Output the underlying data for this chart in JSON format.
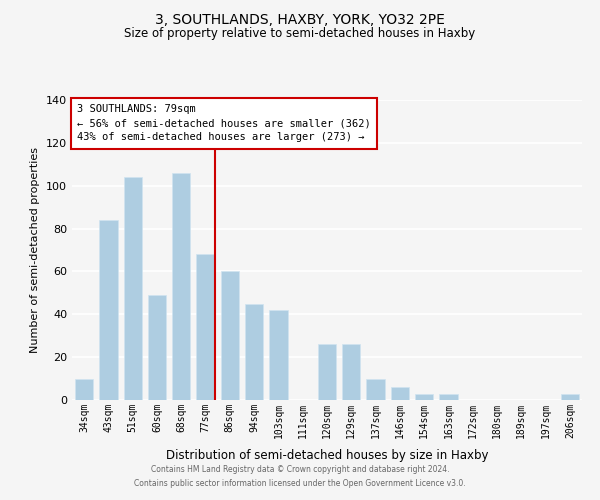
{
  "title": "3, SOUTHLANDS, HAXBY, YORK, YO32 2PE",
  "subtitle": "Size of property relative to semi-detached houses in Haxby",
  "xlabel": "Distribution of semi-detached houses by size in Haxby",
  "ylabel": "Number of semi-detached properties",
  "bar_labels": [
    "34sqm",
    "43sqm",
    "51sqm",
    "60sqm",
    "68sqm",
    "77sqm",
    "86sqm",
    "94sqm",
    "103sqm",
    "111sqm",
    "120sqm",
    "129sqm",
    "137sqm",
    "146sqm",
    "154sqm",
    "163sqm",
    "172sqm",
    "180sqm",
    "189sqm",
    "197sqm",
    "206sqm"
  ],
  "bar_values": [
    10,
    84,
    104,
    49,
    106,
    68,
    60,
    45,
    42,
    0,
    26,
    26,
    10,
    6,
    3,
    3,
    0,
    0,
    0,
    0,
    3
  ],
  "bar_color": "#aecde1",
  "bar_edge_color": "#d0e4f0",
  "background_color": "#f5f5f5",
  "grid_color": "#ffffff",
  "vline_x_index": 5,
  "vline_color": "#cc0000",
  "annotation_title": "3 SOUTHLANDS: 79sqm",
  "annotation_line1": "← 56% of semi-detached houses are smaller (362)",
  "annotation_line2": "43% of semi-detached houses are larger (273) →",
  "annotation_box_color": "#ffffff",
  "annotation_box_edge": "#cc0000",
  "ylim": [
    0,
    140
  ],
  "yticks": [
    0,
    20,
    40,
    60,
    80,
    100,
    120,
    140
  ],
  "footer_line1": "Contains HM Land Registry data © Crown copyright and database right 2024.",
  "footer_line2": "Contains public sector information licensed under the Open Government Licence v3.0."
}
